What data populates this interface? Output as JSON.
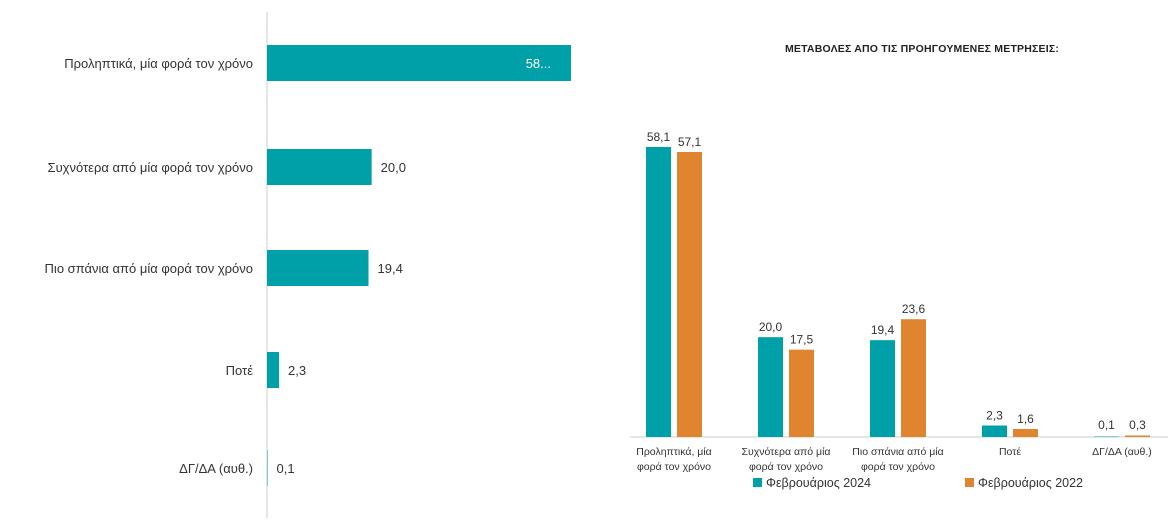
{
  "colors": {
    "teal": "#00A0A8",
    "orange": "#E0852F",
    "axis": "#cccccc"
  },
  "chart_data": [
    {
      "type": "bar",
      "orientation": "horizontal",
      "categories": [
        "Προληπτικά, μία φορά τον χρόνο",
        "Συχνότερα από μία φορά τον χρόνο",
        "Πιο σπάνια από μία φορά τον χρόνο",
        "Ποτέ",
        "ΔΓ/ΔΑ (αυθ.)"
      ],
      "values": [
        58.1,
        20.0,
        19.4,
        2.3,
        0.1
      ],
      "value_labels": [
        "58...",
        "20,0",
        "19,4",
        "2,3",
        "0,1"
      ],
      "xlim": [
        0,
        58.1
      ],
      "grid": false
    },
    {
      "type": "bar",
      "title": "ΜΕΤΑΒΟΛΕΣ ΑΠΟ ΤΙΣ ΠΡΟΗΓΟΥΜΕΝΕΣ ΜΕΤΡΗΣΕΙΣ:",
      "categories": [
        [
          "Προληπτικά, μία",
          "φορά τον χρόνο"
        ],
        [
          "Συχνότερα από μία",
          "φορά τον χρόνο"
        ],
        [
          "Πιο σπάνια από μία",
          "φορά τον χρόνο"
        ],
        [
          "Ποτέ"
        ],
        [
          "ΔΓ/ΔΑ (αυθ.)"
        ]
      ],
      "series": [
        {
          "name": "Φεβρουάριος 2024",
          "values": [
            58.1,
            20.0,
            19.4,
            2.3,
            0.1
          ],
          "labels": [
            "58,1",
            "20,0",
            "19,4",
            "2,3",
            "0,1"
          ]
        },
        {
          "name": "Φεβρουάριος 2022",
          "values": [
            57.1,
            17.5,
            23.6,
            1.6,
            0.3
          ],
          "labels": [
            "57,1",
            "17,5",
            "23,6",
            "1,6",
            "0,3"
          ]
        }
      ],
      "ylim": [
        0,
        58.1
      ],
      "grid": false,
      "legend": "bottom"
    }
  ]
}
